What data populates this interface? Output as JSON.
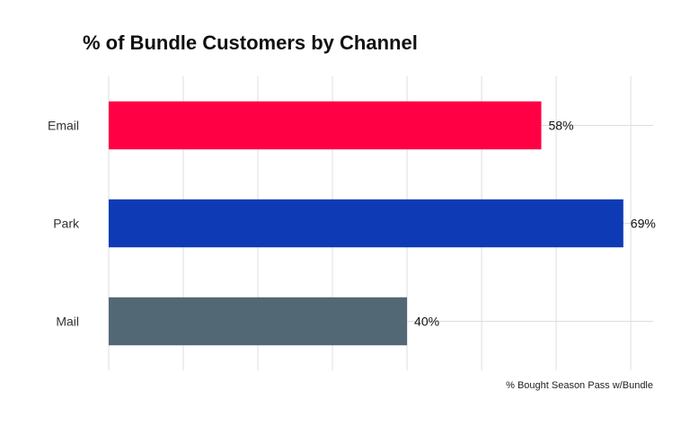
{
  "chart_data": {
    "type": "bar",
    "orientation": "horizontal",
    "title": "% of Bundle Customers by Channel",
    "xlabel": "% Bought Season Pass w/Bundle",
    "ylabel": "",
    "categories": [
      "Email",
      "Park",
      "Mail"
    ],
    "values": [
      58,
      69,
      40
    ],
    "value_labels": [
      "58%",
      "69%",
      "40%"
    ],
    "colors": [
      "#ff0044",
      "#0e3bb5",
      "#526875"
    ],
    "xlim": [
      0,
      73
    ],
    "grid": true,
    "legend": "none"
  }
}
